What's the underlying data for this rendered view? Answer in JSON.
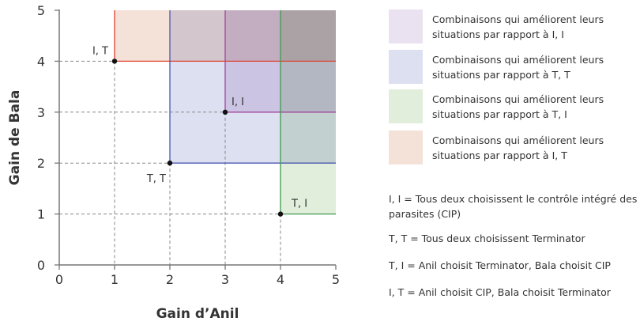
{
  "chart_data": {
    "type": "area",
    "xlabel": "Gain d’Anil",
    "ylabel": "Gain de Bala",
    "xlim": [
      0,
      5
    ],
    "ylim": [
      0,
      5
    ],
    "xticks": [
      "0",
      "1",
      "2",
      "3",
      "4",
      "5"
    ],
    "yticks": [
      "0",
      "1",
      "2",
      "3",
      "4",
      "5"
    ],
    "grid": false,
    "points": [
      {
        "label": "I, T",
        "x": 1,
        "y": 4,
        "color": "#e0402f",
        "fill": "#f4e2d8"
      },
      {
        "label": "T, T",
        "x": 2,
        "y": 2,
        "color": "#4a56b0",
        "fill": "#dde0f1"
      },
      {
        "label": "I, I",
        "x": 3,
        "y": 3,
        "color": "#a0449c",
        "fill": "#ebe0f0"
      },
      {
        "label": "T, I",
        "x": 4,
        "y": 1,
        "color": "#3f9a4f",
        "fill": "#e0eedb"
      }
    ],
    "legend_position": "right",
    "legend": [
      {
        "text": "Combinaisons qui améliorent leurs situations par rapport à I, I",
        "color": "#ebe2f1"
      },
      {
        "text": "Combinaisons qui améliorent leurs situations par rapport à T, T",
        "color": "#dde0f1"
      },
      {
        "text": "Combinaisons qui améliorent leurs situations par rapport à T, I",
        "color": "#e0eedb"
      },
      {
        "text": "Combinaisons qui améliorent leurs situations par rapport à I, T",
        "color": "#f4e2d8"
      }
    ],
    "notes": [
      "I, I = Tous deux choisissent le contrôle intégré des parasites (CIP)",
      "T, T = Tous deux choisissent Terminator",
      "T, I = Anil choisit Terminator, Bala choisit CIP",
      "I, T = Anil choisit CIP, Bala choisit Terminator"
    ]
  }
}
